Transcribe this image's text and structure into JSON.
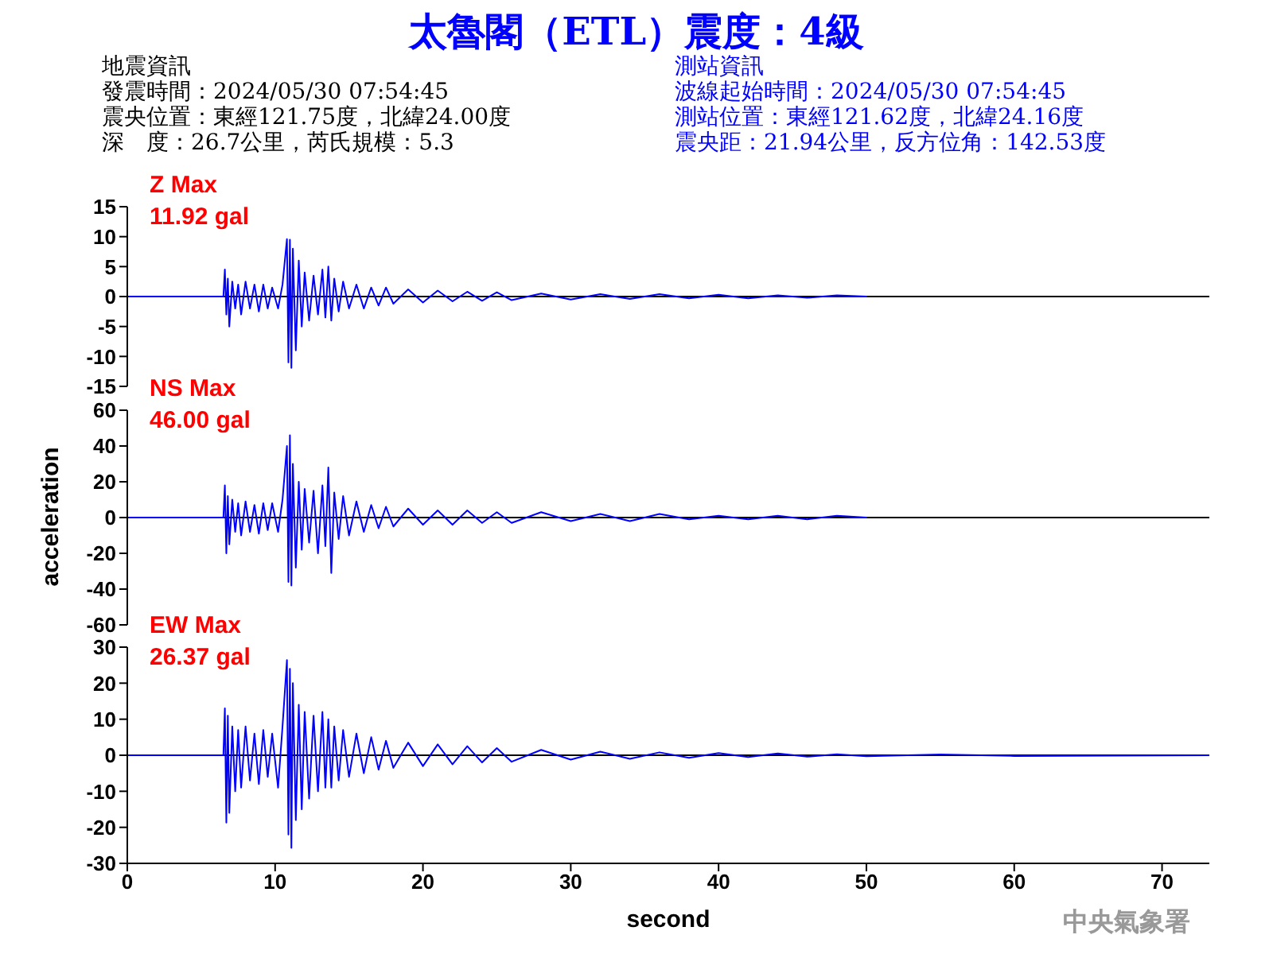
{
  "chart_data": [
    {
      "type": "line",
      "title": "太魯閣（ETL）震度：4級",
      "annotations": [
        "地震資訊",
        "發震時間：2024/05/30 07:54:45",
        "震央位置：東經121.75度，北緯24.00度",
        "深　度：26.7公里，芮氏規模：5.3",
        "測站資訊",
        "波線起始時間：2024/05/30 07:54:45",
        "測站位置：東經121.62度，北緯24.16度",
        "震央距：21.94公里，反方位角：142.53度",
        "Z Max",
        "11.92 gal"
      ],
      "xlim": [
        0,
        73.2
      ],
      "ylim": [
        -15,
        15
      ],
      "yticks": [
        -15,
        -10,
        -5,
        0,
        5,
        10,
        15
      ],
      "tick_labels": "y",
      "ref_lines": [
        {
          "axis": "y",
          "value": 0,
          "color": "#000000"
        }
      ],
      "color": "#0000ff",
      "x": [
        0,
        6.5,
        6.6,
        6.7,
        6.8,
        6.9,
        7.1,
        7.3,
        7.5,
        7.7,
        8.0,
        8.3,
        8.6,
        8.9,
        9.2,
        9.5,
        9.8,
        10.2,
        10.5,
        10.8,
        10.9,
        11.0,
        11.1,
        11.2,
        11.4,
        11.6,
        11.8,
        12.0,
        12.3,
        12.6,
        12.9,
        13.2,
        13.4,
        13.6,
        13.8,
        14.0,
        14.3,
        14.6,
        15,
        15.5,
        16,
        16.5,
        17,
        17.5,
        18,
        19,
        20,
        21,
        22,
        23,
        24,
        25,
        26,
        28,
        30,
        32,
        34,
        36,
        38,
        40,
        42,
        44,
        46,
        48,
        50
      ],
      "values": [
        0,
        0,
        4.5,
        -3,
        3,
        -5,
        2.5,
        -2,
        2,
        -3,
        2.5,
        -2,
        2,
        -2.5,
        2,
        -2,
        1.5,
        -2,
        2,
        9.6,
        -11,
        9.5,
        -11.9,
        8,
        -9,
        6,
        -5,
        4,
        -4,
        3.5,
        -3,
        4.5,
        -3.5,
        5,
        -4,
        3,
        -2.5,
        2.5,
        -2,
        2,
        -2,
        1.5,
        -1.5,
        1.5,
        -1.2,
        1.2,
        -1,
        1,
        -0.8,
        0.8,
        -0.7,
        0.7,
        -0.6,
        0.5,
        -0.5,
        0.4,
        -0.4,
        0.4,
        -0.3,
        0.3,
        -0.3,
        0.2,
        -0.2,
        0.2,
        0
      ]
    },
    {
      "type": "line",
      "ylabel": "acceleration",
      "annotations": [
        "NS Max",
        "46.00 gal"
      ],
      "xlim": [
        0,
        73.2
      ],
      "ylim": [
        -60,
        60
      ],
      "yticks": [
        -60,
        -40,
        -20,
        0,
        20,
        40,
        60
      ],
      "tick_labels": "y",
      "ref_lines": [
        {
          "axis": "y",
          "value": 0,
          "color": "#000000"
        }
      ],
      "color": "#0000ff",
      "x": [
        0,
        6.5,
        6.6,
        6.7,
        6.8,
        6.9,
        7.1,
        7.3,
        7.5,
        7.7,
        8.0,
        8.3,
        8.6,
        8.9,
        9.2,
        9.5,
        9.8,
        10.2,
        10.5,
        10.8,
        10.9,
        11.0,
        11.1,
        11.2,
        11.4,
        11.6,
        11.8,
        12.0,
        12.3,
        12.6,
        12.9,
        13.2,
        13.4,
        13.6,
        13.8,
        14.0,
        14.3,
        14.6,
        15,
        15.5,
        16,
        16.5,
        17,
        17.5,
        18,
        19,
        20,
        21,
        22,
        23,
        24,
        25,
        26,
        28,
        30,
        32,
        34,
        36,
        38,
        40,
        42,
        44,
        46,
        48,
        50
      ],
      "values": [
        0,
        0,
        18,
        -20,
        12,
        -15,
        10,
        -8,
        8,
        -10,
        9,
        -8,
        7,
        -9,
        8,
        -7,
        8,
        -8,
        10,
        40,
        -36,
        46,
        -38,
        30,
        -28,
        20,
        -18,
        16,
        -14,
        15,
        -20,
        18,
        -16,
        28,
        -31,
        14,
        -12,
        12,
        -10,
        9,
        -8,
        7,
        -6,
        6,
        -5,
        5,
        -4,
        4,
        -4,
        4,
        -3,
        3,
        -3,
        3,
        -2,
        2,
        -2,
        2,
        -1,
        1,
        -1,
        1,
        -1,
        1,
        0
      ]
    },
    {
      "type": "line",
      "xlabel": "second",
      "annotations": [
        "EW Max",
        "26.37 gal",
        "中央氣象署"
      ],
      "xlim": [
        0,
        73.2
      ],
      "xticks": [
        0,
        10,
        20,
        30,
        40,
        50,
        60,
        70
      ],
      "ylim": [
        -30,
        30
      ],
      "yticks": [
        -30,
        -20,
        -10,
        0,
        10,
        20,
        30
      ],
      "ref_lines": [
        {
          "axis": "y",
          "value": 0,
          "color": "#000000"
        }
      ],
      "color": "#0000ff",
      "x": [
        0,
        6.5,
        6.6,
        6.7,
        6.8,
        6.9,
        7.1,
        7.3,
        7.5,
        7.7,
        8.0,
        8.3,
        8.6,
        8.9,
        9.2,
        9.5,
        9.8,
        10.2,
        10.5,
        10.8,
        10.9,
        11.0,
        11.1,
        11.2,
        11.4,
        11.6,
        11.8,
        12.0,
        12.3,
        12.6,
        12.9,
        13.2,
        13.4,
        13.6,
        13.8,
        14.0,
        14.3,
        14.6,
        15,
        15.5,
        16,
        16.5,
        17,
        17.5,
        18,
        19,
        20,
        21,
        22,
        23,
        24,
        25,
        26,
        28,
        30,
        32,
        34,
        36,
        38,
        40,
        42,
        44,
        46,
        48,
        50,
        55,
        60,
        73.2
      ],
      "values": [
        0,
        0,
        13,
        -18.7,
        11,
        -16,
        8,
        -10,
        7,
        -9,
        8,
        -7,
        6,
        -8,
        7,
        -6,
        6,
        -9,
        8,
        26.4,
        -22,
        24,
        -25.7,
        20,
        -18,
        14,
        -15,
        12,
        -12,
        11,
        -10,
        12,
        -9,
        10,
        -9,
        8,
        -7,
        7,
        -6,
        6,
        -5,
        5,
        -4,
        4,
        -3.5,
        3.5,
        -3,
        3,
        -2.5,
        2.5,
        -2,
        2,
        -1.8,
        1.5,
        -1.2,
        1,
        -1,
        0.8,
        -0.7,
        0.6,
        -0.5,
        0.5,
        -0.4,
        0.3,
        -0.3,
        0.2,
        -0.2,
        0
      ]
    }
  ]
}
